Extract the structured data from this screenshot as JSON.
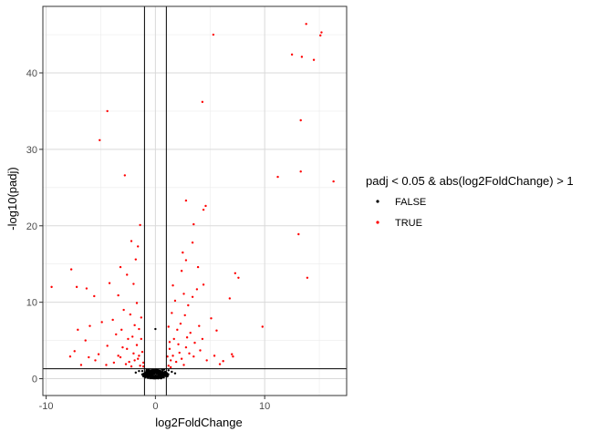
{
  "chart_data": {
    "type": "scatter",
    "title": "",
    "xlabel": "log2FoldChange",
    "ylabel": "-log10(padj)",
    "xlim": [
      -10.3,
      17.5
    ],
    "ylim": [
      -2.2,
      48.7
    ],
    "x_ticks": [
      -10,
      0,
      10
    ],
    "x_tick_labels": [
      "-10",
      "0",
      "10"
    ],
    "y_ticks": [
      0,
      10,
      20,
      30,
      40
    ],
    "y_tick_labels": [
      "0",
      "10",
      "20",
      "30",
      "40"
    ],
    "grid": true,
    "reference_lines": {
      "vertical": [
        -1,
        1
      ],
      "horizontal": [
        1.3
      ]
    },
    "legend": {
      "title": "padj < 0.05 & abs(log2FoldChange) > 1",
      "position": "right",
      "entries": [
        {
          "label": "FALSE",
          "color": "#000000"
        },
        {
          "label": "TRUE",
          "color": "#ff0000"
        }
      ]
    },
    "series": [
      {
        "name": "FALSE",
        "color": "#000000",
        "points": [
          [
            -1.2,
            1.0
          ],
          [
            -0.9,
            0.8
          ],
          [
            -0.6,
            0.6
          ],
          [
            -0.3,
            0.4
          ],
          [
            0,
            0.2
          ],
          [
            0.3,
            0.4
          ],
          [
            0.6,
            0.7
          ],
          [
            0.9,
            0.9
          ],
          [
            1.2,
            1.1
          ],
          [
            -0.8,
            1.2
          ],
          [
            -0.4,
            1.1
          ],
          [
            0.4,
            1.0
          ],
          [
            0.8,
            1.2
          ],
          [
            -0.5,
            0.3
          ],
          [
            0.5,
            0.3
          ],
          [
            -0.2,
            0.1
          ],
          [
            0.2,
            0.1
          ],
          [
            -1.0,
            0.5
          ],
          [
            1.0,
            0.5
          ],
          [
            0.1,
            0.7
          ],
          [
            -0.1,
            0.6
          ],
          [
            -0.7,
            0.9
          ],
          [
            0.7,
            0.8
          ],
          [
            1.5,
            0.9
          ],
          [
            -1.5,
            1.0
          ],
          [
            0.0,
            1.0
          ],
          [
            -0.3,
            0.9
          ],
          [
            0.3,
            0.9
          ],
          [
            0.6,
            1.2
          ],
          [
            -0.6,
            1.2
          ],
          [
            1.1,
            0.3
          ],
          [
            -1.1,
            0.3
          ],
          [
            0.0,
            6.5
          ],
          [
            -1.8,
            0.8
          ],
          [
            1.8,
            0.7
          ]
        ]
      },
      {
        "name": "TRUE",
        "color": "#ff0000",
        "points": [
          [
            13.8,
            46.4
          ],
          [
            15.2,
            45.3
          ],
          [
            15.1,
            44.9
          ],
          [
            5.3,
            45.0
          ],
          [
            12.5,
            42.4
          ],
          [
            13.4,
            42.1
          ],
          [
            14.5,
            41.7
          ],
          [
            4.3,
            36.2
          ],
          [
            13.3,
            33.8
          ],
          [
            -4.4,
            35.0
          ],
          [
            -5.1,
            31.2
          ],
          [
            -2.8,
            26.6
          ],
          [
            11.2,
            26.4
          ],
          [
            13.3,
            27.1
          ],
          [
            16.3,
            25.8
          ],
          [
            2.8,
            23.3
          ],
          [
            4.6,
            22.6
          ],
          [
            4.4,
            22.1
          ],
          [
            3.5,
            20.2
          ],
          [
            13.1,
            18.9
          ],
          [
            2.5,
            16.5
          ],
          [
            3.4,
            17.8
          ],
          [
            2.8,
            15.5
          ],
          [
            13.9,
            13.2
          ],
          [
            -7.7,
            14.3
          ],
          [
            -9.5,
            12.0
          ],
          [
            -7.2,
            12.0
          ],
          [
            -6.3,
            11.8
          ],
          [
            -5.6,
            10.8
          ],
          [
            -3.2,
            14.6
          ],
          [
            -2.6,
            13.6
          ],
          [
            -2.0,
            12.4
          ],
          [
            -1.6,
            17.3
          ],
          [
            -1.4,
            20.1
          ],
          [
            -2.2,
            18.0
          ],
          [
            -1.8,
            15.6
          ],
          [
            -4.2,
            12.5
          ],
          [
            -3.4,
            10.9
          ],
          [
            -2.9,
            9.0
          ],
          [
            -2.3,
            8.4
          ],
          [
            -1.7,
            9.9
          ],
          [
            -1.3,
            8.0
          ],
          [
            -1.5,
            6.5
          ],
          [
            -1.9,
            7.0
          ],
          [
            -2.5,
            5.2
          ],
          [
            -3.0,
            4.1
          ],
          [
            -3.6,
            5.8
          ],
          [
            -4.4,
            4.3
          ],
          [
            -5.2,
            3.2
          ],
          [
            -6.1,
            2.8
          ],
          [
            -7.4,
            3.6
          ],
          [
            -7.8,
            2.9
          ],
          [
            -6.8,
            1.8
          ],
          [
            -1.2,
            3.5
          ],
          [
            -1.1,
            2.1
          ],
          [
            -1.4,
            1.7
          ],
          [
            -1.6,
            2.6
          ],
          [
            -2.0,
            3.3
          ],
          [
            -2.4,
            2.2
          ],
          [
            -2.7,
            1.9
          ],
          [
            -3.2,
            2.8
          ],
          [
            -3.8,
            2.1
          ],
          [
            -4.5,
            1.8
          ],
          [
            -1.3,
            5.2
          ],
          [
            -1.7,
            4.4
          ],
          [
            -2.1,
            5.5
          ],
          [
            -2.6,
            3.9
          ],
          [
            -3.4,
            3.0
          ],
          [
            -1.9,
            2.4
          ],
          [
            -1.5,
            3.0
          ],
          [
            -1.1,
            1.6
          ],
          [
            -2.2,
            1.6
          ],
          [
            -5.5,
            2.4
          ],
          [
            -6.4,
            5.0
          ],
          [
            -7.1,
            6.4
          ],
          [
            -6.0,
            6.9
          ],
          [
            -4.9,
            7.4
          ],
          [
            -3.9,
            7.7
          ],
          [
            -3.1,
            6.4
          ],
          [
            1.2,
            1.7
          ],
          [
            1.4,
            2.4
          ],
          [
            1.6,
            3.0
          ],
          [
            1.9,
            2.2
          ],
          [
            2.2,
            3.4
          ],
          [
            2.4,
            2.6
          ],
          [
            2.8,
            4.1
          ],
          [
            3.1,
            3.3
          ],
          [
            3.5,
            2.9
          ],
          [
            4.1,
            3.7
          ],
          [
            4.7,
            2.4
          ],
          [
            5.4,
            3.0
          ],
          [
            6.2,
            2.3
          ],
          [
            7.1,
            2.9
          ],
          [
            1.3,
            3.9
          ],
          [
            1.7,
            5.2
          ],
          [
            2.0,
            6.4
          ],
          [
            2.3,
            7.2
          ],
          [
            2.7,
            8.3
          ],
          [
            3.0,
            9.6
          ],
          [
            3.4,
            10.7
          ],
          [
            3.8,
            11.7
          ],
          [
            4.4,
            12.3
          ],
          [
            2.6,
            11.1
          ],
          [
            1.5,
            8.6
          ],
          [
            1.8,
            10.2
          ],
          [
            3.2,
            6.0
          ],
          [
            4.0,
            6.9
          ],
          [
            5.1,
            7.9
          ],
          [
            6.8,
            10.5
          ],
          [
            7.3,
            13.8
          ],
          [
            7.6,
            13.2
          ],
          [
            5.6,
            6.3
          ],
          [
            9.8,
            6.8
          ],
          [
            1.1,
            2.9
          ],
          [
            1.3,
            4.8
          ],
          [
            2.1,
            4.5
          ],
          [
            2.9,
            5.4
          ],
          [
            3.6,
            4.7
          ],
          [
            4.3,
            5.2
          ],
          [
            1.2,
            6.8
          ],
          [
            1.6,
            12.2
          ],
          [
            2.4,
            14.1
          ],
          [
            3.9,
            14.6
          ],
          [
            1.4,
            1.5
          ],
          [
            2.6,
            1.8
          ],
          [
            7.0,
            3.2
          ],
          [
            5.9,
            1.9
          ]
        ]
      }
    ]
  }
}
